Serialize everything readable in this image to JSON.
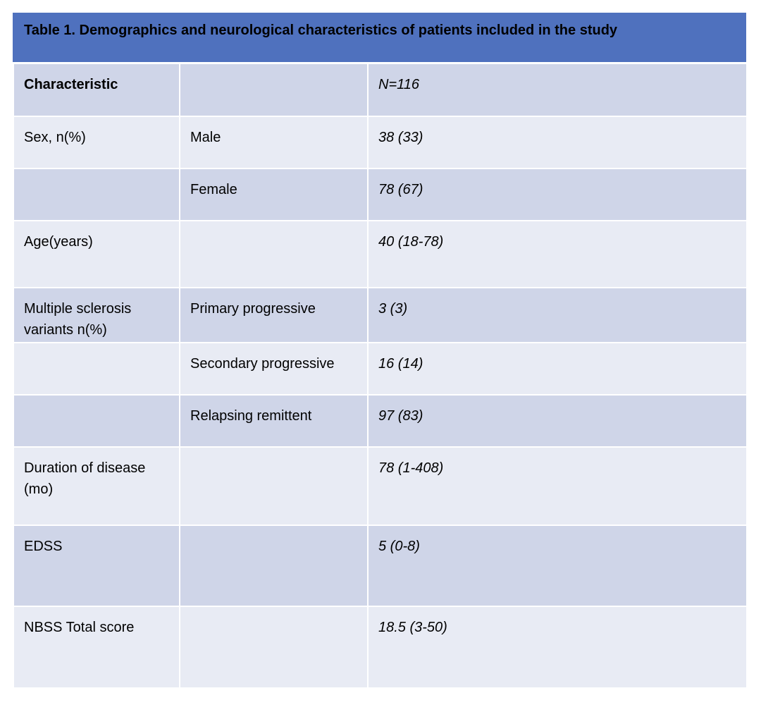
{
  "title": "Table 1. Demographics and neurological characteristics of patients included in the study",
  "header": {
    "characteristic": "Characteristic",
    "sub": "",
    "n": "N=116"
  },
  "rows": [
    {
      "characteristic": "Sex, n(%)",
      "sub": "Male",
      "value": "38 (33)"
    },
    {
      "characteristic": "",
      "sub": "Female",
      "value": "78 (67)"
    },
    {
      "characteristic": "Age(years)",
      "sub": "",
      "value": "40 (18-78)"
    },
    {
      "characteristic": "Multiple sclerosis variants n(%)",
      "sub": "Primary progressive",
      "value": "3 (3)"
    },
    {
      "characteristic": "",
      "sub": "Secondary progressive",
      "value": "16 (14)"
    },
    {
      "characteristic": "",
      "sub": "Relapsing remittent",
      "value": "97 (83)"
    },
    {
      "characteristic": "Duration of disease (mo)",
      "sub": "",
      "value": "78 (1-408)"
    },
    {
      "characteristic": "EDSS",
      "sub": "",
      "value": "5 (0-8)"
    },
    {
      "characteristic": "NBSS Total score",
      "sub": "",
      "value": "18.5 (3-50)"
    }
  ],
  "colors": {
    "title_bg": "#4f71be",
    "row_dark": "#cfd5e8",
    "row_light": "#e8ebf4"
  }
}
